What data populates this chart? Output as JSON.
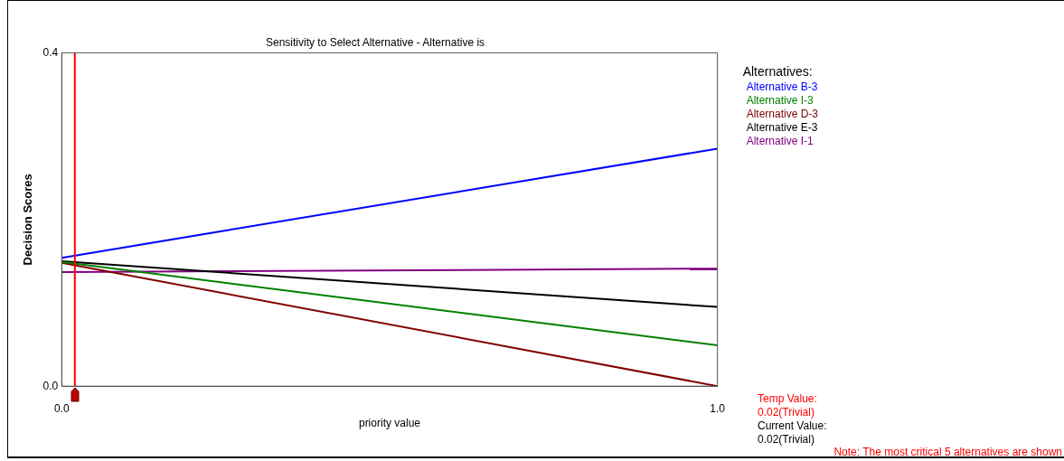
{
  "chart_data": {
    "type": "line",
    "title": "Sensitivity to Select Alternative - Alternative is",
    "xlabel": "priority value",
    "ylabel": "Decision Scores",
    "legend_title": "Alternatives:",
    "legend": "right",
    "x": [
      0,
      1
    ],
    "xlim": [
      0,
      1
    ],
    "xticks": [
      {
        "value": 0,
        "label": "0.0"
      },
      {
        "value": 1,
        "label": "1.0"
      }
    ],
    "ylim": [
      0,
      0.4
    ],
    "yticks": [
      {
        "value": 0,
        "label": "0.0"
      },
      0.4
    ],
    "grid": false,
    "marker": "none",
    "line_style": "solid",
    "series": [
      {
        "name": "Alternative B-3",
        "color": "#0000ff",
        "values": [
          0.154,
          0.285
        ]
      },
      {
        "name": "Alternative I-3",
        "color": "#008000",
        "values": [
          0.149,
          0.049
        ]
      },
      {
        "name": "Alternative D-3",
        "color": "#800000",
        "values": [
          0.148,
          0.0
        ]
      },
      {
        "name": "Alternative E-3",
        "color": "#000000",
        "values": [
          0.15,
          0.095
        ]
      },
      {
        "name": "Alternative I-1",
        "color": "#800080",
        "values": [
          0.137,
          0.141
        ]
      }
    ],
    "ref_lines": [
      {
        "axis": "x",
        "value": 0.02,
        "color": "#ff0000"
      }
    ],
    "annotations": [
      "Temp Value:",
      "0.02(Trivial)",
      "Current Value:",
      "0.02(Trivial)",
      "Note: The most critical 5 alternatives are shown"
    ]
  }
}
